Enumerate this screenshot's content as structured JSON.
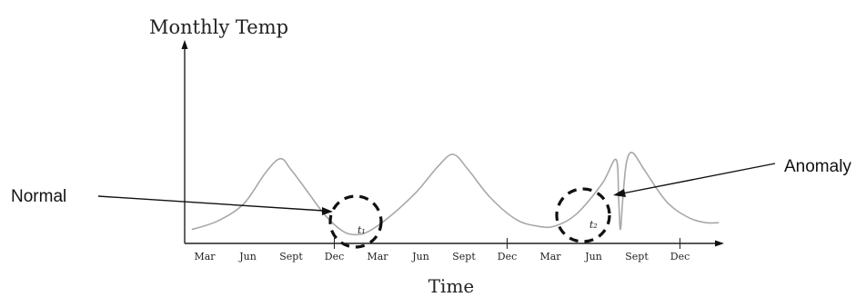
{
  "chart_data": {
    "type": "line",
    "ylabel": "Monthly Temp",
    "xlabel": "Time",
    "tick_labels": [
      "Mar",
      "Jun",
      "Sept",
      "Dec",
      "Mar",
      "Jun",
      "Sept",
      "Dec",
      "Mar",
      "Jun",
      "Sept",
      "Dec"
    ],
    "x_range": [
      0,
      12
    ],
    "y_range": [
      0,
      1
    ],
    "grid": false,
    "series": [
      {
        "points": [
          [
            -0.3,
            0.12
          ],
          [
            0.3,
            0.22
          ],
          [
            0.9,
            0.42
          ],
          [
            1.4,
            0.78
          ],
          [
            1.75,
            0.95
          ],
          [
            2.0,
            0.82
          ],
          [
            2.4,
            0.55
          ],
          [
            2.8,
            0.28
          ],
          [
            3.2,
            0.1
          ],
          [
            3.5,
            0.06
          ],
          [
            3.8,
            0.1
          ],
          [
            4.3,
            0.28
          ],
          [
            4.9,
            0.56
          ],
          [
            5.4,
            0.86
          ],
          [
            5.75,
            1.0
          ],
          [
            6.1,
            0.82
          ],
          [
            6.6,
            0.5
          ],
          [
            7.2,
            0.24
          ],
          [
            7.7,
            0.16
          ],
          [
            8.1,
            0.16
          ],
          [
            8.6,
            0.3
          ],
          [
            9.2,
            0.66
          ],
          [
            9.52,
            0.94
          ],
          [
            9.58,
            0.5
          ],
          [
            9.62,
            0.12
          ],
          [
            9.68,
            0.5
          ],
          [
            9.76,
            0.9
          ],
          [
            9.9,
            1.02
          ],
          [
            10.2,
            0.8
          ],
          [
            10.7,
            0.44
          ],
          [
            11.2,
            0.26
          ],
          [
            11.6,
            0.2
          ],
          [
            11.9,
            0.2
          ]
        ]
      }
    ],
    "annotations": [
      {
        "label": "t₁",
        "x": 3.65,
        "y": 0.1,
        "callout": "Normal"
      },
      {
        "label": "t₂",
        "x": 9.7,
        "y": 0.13,
        "callout": "Anomaly"
      }
    ]
  }
}
